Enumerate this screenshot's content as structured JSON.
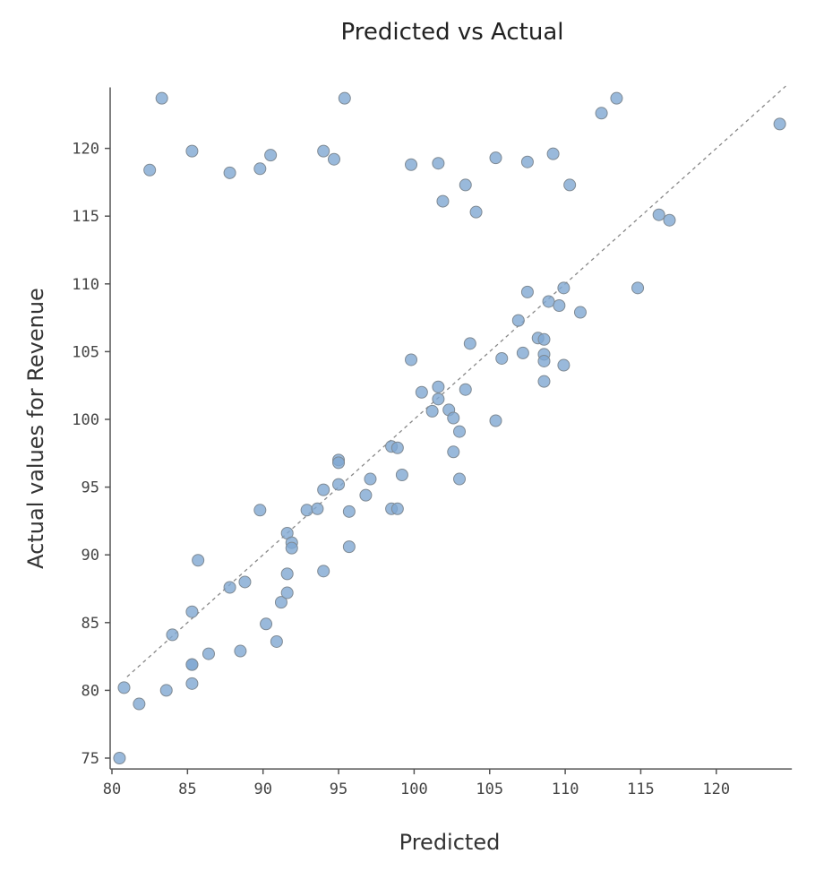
{
  "chart_data": {
    "type": "scatter",
    "title": "Predicted vs Actual",
    "xlabel": "Predicted",
    "ylabel": "Actual values for Revenue",
    "xlim": [
      80,
      125
    ],
    "ylim": [
      74.2,
      124.5
    ],
    "xticks": [
      80,
      85,
      90,
      95,
      100,
      105,
      110,
      115,
      120
    ],
    "yticks": [
      75,
      80,
      85,
      90,
      95,
      100,
      105,
      110,
      115,
      120
    ],
    "grid": false,
    "reference_line": "y = x (dashed)",
    "point_color": "#7fa8d2",
    "points": [
      [
        80.5,
        75.0
      ],
      [
        80.8,
        80.2
      ],
      [
        81.8,
        79.0
      ],
      [
        83.6,
        80.0
      ],
      [
        84.0,
        84.1
      ],
      [
        85.3,
        80.5
      ],
      [
        85.3,
        81.9
      ],
      [
        85.3,
        81.9
      ],
      [
        85.3,
        85.8
      ],
      [
        85.7,
        89.6
      ],
      [
        86.4,
        82.7
      ],
      [
        87.8,
        87.6
      ],
      [
        88.8,
        88.0
      ],
      [
        88.5,
        82.9
      ],
      [
        89.8,
        93.3
      ],
      [
        90.2,
        84.9
      ],
      [
        90.9,
        83.6
      ],
      [
        91.2,
        86.5
      ],
      [
        91.6,
        87.2
      ],
      [
        91.6,
        88.6
      ],
      [
        91.6,
        91.6
      ],
      [
        91.9,
        90.9
      ],
      [
        91.9,
        90.5
      ],
      [
        92.9,
        93.3
      ],
      [
        93.6,
        93.4
      ],
      [
        94.0,
        94.8
      ],
      [
        94.0,
        88.8
      ],
      [
        95.0,
        97.0
      ],
      [
        95.0,
        96.8
      ],
      [
        95.0,
        95.2
      ],
      [
        95.7,
        93.2
      ],
      [
        95.7,
        90.6
      ],
      [
        96.8,
        94.4
      ],
      [
        97.1,
        95.6
      ],
      [
        98.5,
        98.0
      ],
      [
        98.9,
        97.9
      ],
      [
        98.5,
        93.4
      ],
      [
        98.9,
        93.4
      ],
      [
        99.2,
        95.9
      ],
      [
        99.8,
        104.4
      ],
      [
        100.5,
        102.0
      ],
      [
        101.2,
        100.6
      ],
      [
        101.6,
        102.4
      ],
      [
        101.6,
        101.5
      ],
      [
        102.3,
        100.7
      ],
      [
        102.6,
        100.1
      ],
      [
        103.0,
        99.1
      ],
      [
        102.6,
        97.6
      ],
      [
        103.0,
        95.6
      ],
      [
        103.4,
        102.2
      ],
      [
        103.7,
        105.6
      ],
      [
        105.4,
        99.9
      ],
      [
        105.8,
        104.5
      ],
      [
        106.9,
        107.3
      ],
      [
        107.2,
        104.9
      ],
      [
        107.5,
        109.4
      ],
      [
        108.2,
        106.0
      ],
      [
        108.6,
        105.9
      ],
      [
        108.6,
        104.8
      ],
      [
        108.6,
        104.3
      ],
      [
        108.6,
        102.8
      ],
      [
        108.9,
        108.7
      ],
      [
        109.6,
        108.4
      ],
      [
        109.9,
        109.7
      ],
      [
        109.9,
        104.0
      ],
      [
        111.0,
        107.9
      ],
      [
        114.8,
        109.7
      ],
      [
        116.2,
        115.1
      ],
      [
        116.9,
        114.7
      ],
      [
        124.2,
        121.8
      ],
      [
        112.4,
        122.6
      ],
      [
        113.4,
        123.7
      ],
      [
        83.3,
        123.7
      ],
      [
        95.4,
        123.7
      ],
      [
        82.5,
        118.4
      ],
      [
        85.3,
        119.8
      ],
      [
        87.8,
        118.2
      ],
      [
        89.8,
        118.5
      ],
      [
        90.5,
        119.5
      ],
      [
        94.0,
        119.8
      ],
      [
        94.7,
        119.2
      ],
      [
        99.8,
        118.8
      ],
      [
        101.6,
        118.9
      ],
      [
        101.9,
        116.1
      ],
      [
        103.4,
        117.3
      ],
      [
        104.1,
        115.3
      ],
      [
        105.4,
        119.3
      ],
      [
        107.5,
        119.0
      ],
      [
        109.2,
        119.6
      ],
      [
        110.3,
        117.3
      ]
    ]
  }
}
